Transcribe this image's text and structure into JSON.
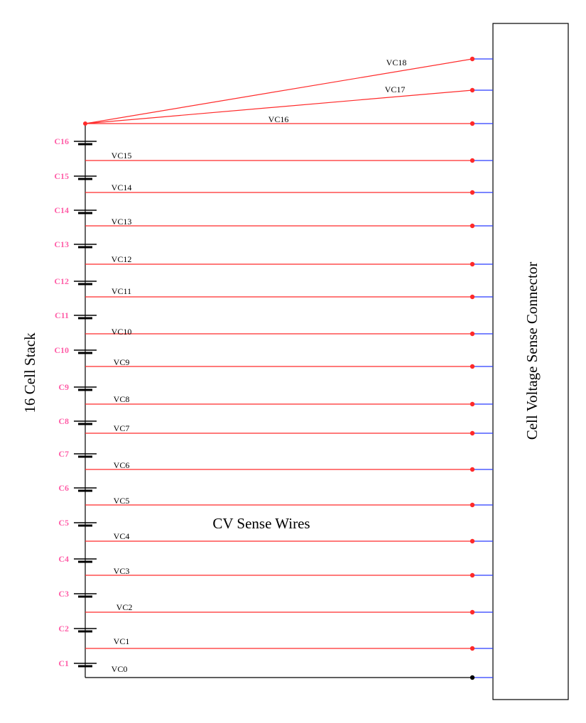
{
  "diagram": {
    "stack_label": "16 Cell Stack",
    "connector_label": "Cell Voltage  Sense Connector",
    "wires_label": "CV Sense Wires",
    "cells": [
      "C16",
      "C15",
      "C14",
      "C13",
      "C12",
      "C11",
      "C10",
      "C9",
      "C8",
      "C7",
      "C6",
      "C5",
      "C4",
      "C3",
      "C2",
      "C1"
    ],
    "wires": [
      "VC18",
      "VC17",
      "VC16",
      "VC15",
      "VC14",
      "VC13",
      "VC12",
      "VC11",
      "VC10",
      "VC9",
      "VC8",
      "VC7",
      "VC6",
      "VC5",
      "VC4",
      "VC3",
      "VC2",
      "VC1",
      "VC0"
    ],
    "colors": {
      "wire": "#ff2a2a",
      "ground_wire": "#000000",
      "connector_pin": "#2a3cff",
      "cell_label": "#ff5fa8",
      "text": "#000000"
    }
  }
}
